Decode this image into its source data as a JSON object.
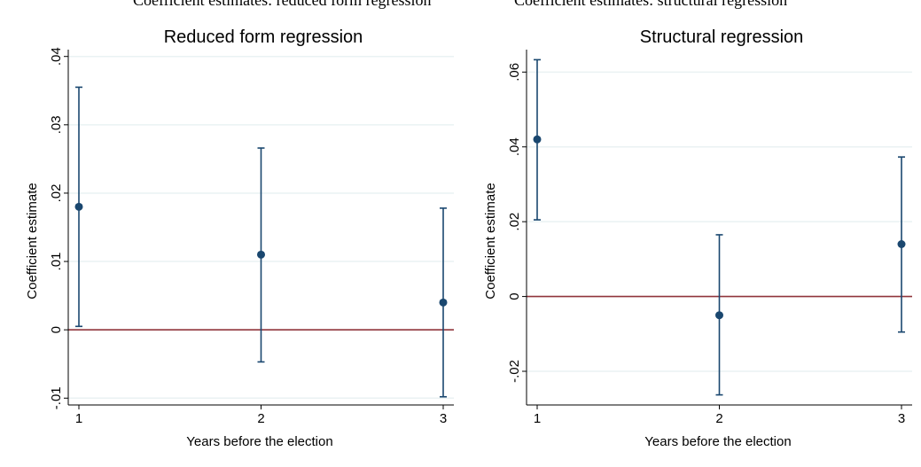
{
  "top_fragment": {
    "left_text": "Coefficient estimates: reduced form regression",
    "right_text": "Coefficient estimates: structural regression"
  },
  "colors": {
    "marker": "#1a476f",
    "zero_line": "#90353b",
    "grid": "#eaf2f3",
    "frame": "#000000"
  },
  "chart_data": [
    {
      "type": "scatter",
      "title": "Reduced form regression",
      "xlabel": "Years before the election",
      "ylabel": "Coefficient estimate",
      "x": [
        1,
        2,
        3
      ],
      "x_tick_labels": [
        "1",
        "2",
        "3"
      ],
      "values": [
        0.018,
        0.011,
        0.004
      ],
      "ci_low": [
        0.0005,
        -0.0047,
        -0.0098
      ],
      "ci_high": [
        0.0355,
        0.0266,
        0.0178
      ],
      "ylim": [
        -0.011,
        0.041
      ],
      "y_ticks": [
        -0.01,
        0,
        0.01,
        0.02,
        0.03,
        0.04
      ],
      "y_tick_labels": [
        "-.01",
        "0",
        ".01",
        ".02",
        ".03",
        ".04"
      ],
      "reference_line": 0,
      "grid": true,
      "error_bars": true
    },
    {
      "type": "scatter",
      "title": "Structural regression",
      "xlabel": "Years before the election",
      "ylabel": "Coefficient estimate",
      "x": [
        1,
        2,
        3
      ],
      "x_tick_labels": [
        "1",
        "2",
        "3"
      ],
      "values": [
        0.042,
        -0.005,
        0.014
      ],
      "ci_low": [
        0.0205,
        -0.0263,
        -0.0095
      ],
      "ci_high": [
        0.0633,
        0.0165,
        0.0373
      ],
      "ylim": [
        -0.029,
        0.066
      ],
      "y_ticks": [
        -0.02,
        0,
        0.02,
        0.04,
        0.06
      ],
      "y_tick_labels": [
        "-.02",
        "0",
        ".02",
        ".04",
        ".06"
      ],
      "reference_line": 0,
      "grid": true,
      "error_bars": true
    }
  ]
}
